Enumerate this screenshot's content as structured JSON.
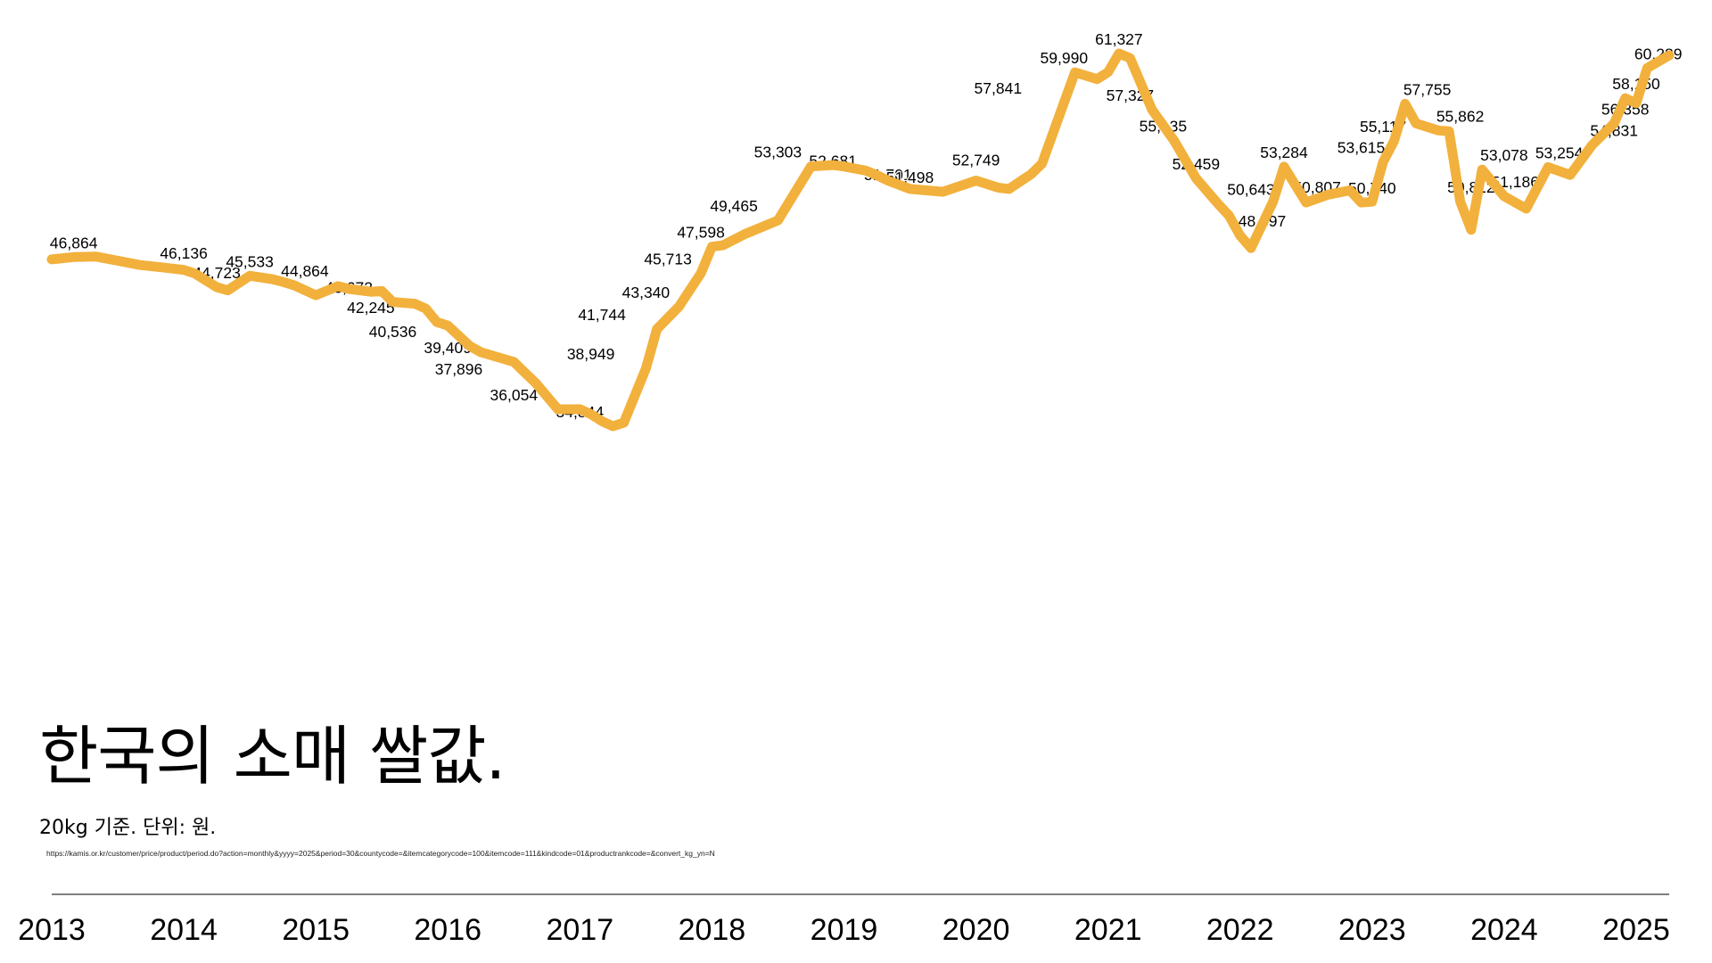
{
  "chart_data": {
    "type": "line",
    "title": "한국의 소매 쌀값.",
    "subtitle": "20kg 기준. 단위: 원.",
    "source": "https://kamis.or.kr/customer/price/product/period.do?action=monthly&yyyy=2025&period=30&countycode=&itemcategorycode=100&itemcode=111&kindcode=01&productrankcode=&convert_kg_yn=N",
    "xlabel": "",
    "ylabel": "",
    "xlim": [
      2013,
      2025.25
    ],
    "ylim": [
      34000,
      62500
    ],
    "grid": false,
    "legend": "none",
    "colors": {
      "line": "#F2B13C",
      "text": "#000000",
      "axis": "#333333"
    },
    "x_ticks": [
      "2013",
      "2014",
      "2015",
      "2016",
      "2017",
      "2018",
      "2019",
      "2020",
      "2021",
      "2022",
      "2023",
      "2024",
      "2025"
    ],
    "series": [
      {
        "x": [
          2013.0,
          2013.167,
          2013.333,
          2013.5,
          2013.667,
          2013.833,
          2014.0,
          2014.083,
          2014.25,
          2014.333,
          2014.5,
          2014.667,
          2014.75,
          2014.833,
          2015.0,
          2015.167,
          2015.25,
          2015.417,
          2015.5,
          2015.583,
          2015.75,
          2015.833,
          2015.917,
          2016.0,
          2016.167,
          2016.25,
          2016.5,
          2016.667,
          2016.833,
          2016.917,
          2017.0,
          2017.083,
          2017.167,
          2017.25,
          2017.333,
          2017.5,
          2017.583,
          2017.75,
          2017.917,
          2018.0,
          2018.083,
          2018.25,
          2018.5,
          2018.75,
          2018.917,
          2019.0,
          2019.167,
          2019.25,
          2019.333,
          2019.5,
          2019.75,
          2020.0,
          2020.167,
          2020.25,
          2020.417,
          2020.5,
          2020.667,
          2020.75,
          2020.917,
          2021.0,
          2021.083,
          2021.167,
          2021.333,
          2021.5,
          2021.667,
          2021.833,
          2021.917,
          2022.0,
          2022.083,
          2022.25,
          2022.333,
          2022.5,
          2022.667,
          2022.833,
          2022.917,
          2023.0,
          2023.083,
          2023.167,
          2023.25,
          2023.333,
          2023.5,
          2023.583,
          2023.667,
          2023.75,
          2023.833,
          2024.0,
          2024.167,
          2024.333,
          2024.5,
          2024.667,
          2024.833,
          2024.917,
          2025.0,
          2025.083,
          2025.25
        ],
        "y": [
          46700,
          46864,
          46900,
          46600,
          46300,
          46136,
          45950,
          45700,
          44723,
          44500,
          45533,
          45300,
          45100,
          44864,
          44150,
          44800,
          44600,
          44400,
          44450,
          43672,
          43550,
          43200,
          42245,
          42000,
          40536,
          40100,
          39409,
          37896,
          36054,
          36050,
          36054,
          35700,
          35200,
          34844,
          35100,
          38949,
          41744,
          43340,
          45713,
          47598,
          47700,
          48500,
          49465,
          53303,
          53400,
          53300,
          53000,
          52681,
          52300,
          51701,
          51498,
          52300,
          51800,
          51700,
          52749,
          53500,
          57841,
          59990,
          59500,
          60000,
          61327,
          61000,
          57327,
          55135,
          52459,
          50643,
          49800,
          48397,
          47500,
          50807,
          53284,
          50740,
          51300,
          51600,
          50740,
          50800,
          53615,
          55117,
          57755,
          56358,
          55862,
          55800,
          50812,
          48800,
          53078,
          51186,
          50300,
          53254,
          52700,
          54831,
          56358,
          58150,
          57800,
          60289,
          61200
        ]
      }
    ],
    "data_labels": [
      {
        "x": 2013.167,
        "y": 46864,
        "text": "46,864"
      },
      {
        "x": 2014.0,
        "y": 46136,
        "text": "46,136"
      },
      {
        "x": 2014.25,
        "y": 44723,
        "text": "44,723"
      },
      {
        "x": 2014.5,
        "y": 45533,
        "text": "45,533"
      },
      {
        "x": 2014.917,
        "y": 44864,
        "text": "44,864"
      },
      {
        "x": 2015.25,
        "y": 43672,
        "text": "43,672"
      },
      {
        "x": 2015.417,
        "y": 42245,
        "text": "42,245"
      },
      {
        "x": 2015.583,
        "y": 40536,
        "text": "40,536"
      },
      {
        "x": 2016.0,
        "y": 39409,
        "text": "39,409"
      },
      {
        "x": 2016.083,
        "y": 37896,
        "text": "37,896"
      },
      {
        "x": 2016.5,
        "y": 36054,
        "text": "36,054"
      },
      {
        "x": 2017.0,
        "y": 34844,
        "text": "34,844"
      },
      {
        "x": 2017.083,
        "y": 38949,
        "text": "38,949"
      },
      {
        "x": 2017.167,
        "y": 41744,
        "text": "41,744"
      },
      {
        "x": 2017.5,
        "y": 43340,
        "text": "43,340"
      },
      {
        "x": 2017.667,
        "y": 45713,
        "text": "45,713"
      },
      {
        "x": 2017.917,
        "y": 47598,
        "text": "47,598"
      },
      {
        "x": 2018.167,
        "y": 49465,
        "text": "49,465"
      },
      {
        "x": 2018.5,
        "y": 53303,
        "text": "53,303"
      },
      {
        "x": 2018.917,
        "y": 52681,
        "text": "52,681"
      },
      {
        "x": 2019.333,
        "y": 51701,
        "text": "51,701"
      },
      {
        "x": 2019.5,
        "y": 51498,
        "text": "51,498"
      },
      {
        "x": 2020.0,
        "y": 52749,
        "text": "52,749"
      },
      {
        "x": 2020.167,
        "y": 57841,
        "text": "57,841"
      },
      {
        "x": 2020.667,
        "y": 59990,
        "text": "59,990"
      },
      {
        "x": 2021.083,
        "y": 61327,
        "text": "61,327"
      },
      {
        "x": 2021.167,
        "y": 57327,
        "text": "57,327"
      },
      {
        "x": 2021.417,
        "y": 55135,
        "text": "55,135"
      },
      {
        "x": 2021.667,
        "y": 52459,
        "text": "52,459"
      },
      {
        "x": 2022.083,
        "y": 50643,
        "text": "50,643"
      },
      {
        "x": 2022.167,
        "y": 48397,
        "text": "48,397"
      },
      {
        "x": 2022.333,
        "y": 53284,
        "text": "53,284"
      },
      {
        "x": 2022.583,
        "y": 50807,
        "text": "50,807"
      },
      {
        "x": 2023.0,
        "y": 50740,
        "text": "50,740"
      },
      {
        "x": 2022.917,
        "y": 53615,
        "text": "53,615"
      },
      {
        "x": 2023.083,
        "y": 55117,
        "text": "55,117"
      },
      {
        "x": 2023.417,
        "y": 57755,
        "text": "57,755"
      },
      {
        "x": 2023.667,
        "y": 55862,
        "text": "55,862"
      },
      {
        "x": 2023.75,
        "y": 50812,
        "text": "50,812"
      },
      {
        "x": 2024.0,
        "y": 53078,
        "text": "53,078"
      },
      {
        "x": 2024.083,
        "y": 51186,
        "text": "51,186"
      },
      {
        "x": 2024.417,
        "y": 53254,
        "text": "53,254"
      },
      {
        "x": 2024.833,
        "y": 54831,
        "text": "54,831"
      },
      {
        "x": 2024.917,
        "y": 56358,
        "text": "56,358"
      },
      {
        "x": 2025.0,
        "y": 58150,
        "text": "58,150"
      },
      {
        "x": 2025.167,
        "y": 60289,
        "text": "60,289"
      }
    ]
  }
}
